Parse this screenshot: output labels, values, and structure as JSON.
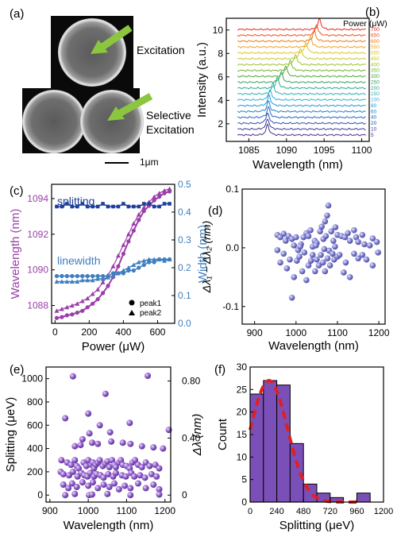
{
  "colors": {
    "purple": "#9b3fa8",
    "navy": "#1f3f9a",
    "lightblue": "#3f7fc0",
    "violet": "#7a52c0",
    "sphere": "#8a8ad6",
    "fit": "#e02020",
    "bar": "#7b4fb8"
  },
  "panel_a": {
    "label": "(a)",
    "excitation": "Excitation",
    "selective1": "Selective",
    "selective2": "Excitation",
    "scale": "1μm"
  },
  "chart_data": [
    {
      "panel": "(b)",
      "type": "line",
      "xlabel": "Wavelength (nm)",
      "ylabel": "Intensity (a.u.)",
      "xlim": [
        1082,
        1101
      ],
      "ylim": [
        0.5,
        11
      ],
      "xticks": [
        1085,
        1090,
        1095,
        1100
      ],
      "yticks": [
        2,
        4,
        6,
        8,
        10
      ],
      "legend_title": "Power (μW)",
      "series_names": [
        "5",
        "10",
        "20",
        "40",
        "60",
        "80",
        "100",
        "150",
        "200",
        "250",
        "300",
        "350",
        "400",
        "450",
        "500",
        "550",
        "600",
        "650",
        "700"
      ],
      "peak_wavelengths": [
        1087.5,
        1087.5,
        1087.5,
        1087.6,
        1087.6,
        1087.7,
        1087.8,
        1088.2,
        1088.8,
        1089.3,
        1089.9,
        1090.5,
        1091.2,
        1091.9,
        1092.6,
        1093.2,
        1093.7,
        1094.0,
        1094.4
      ],
      "grid": false
    },
    {
      "panel": "(c)",
      "type": "line",
      "xlabel": "Power (μW)",
      "ylabel_left": "Wavelength (nm)",
      "ylabel_right": "Width (nm)",
      "xlim": [
        -20,
        700
      ],
      "ylim_left": [
        1087,
        1094.8
      ],
      "ylim_right": [
        0,
        0.5
      ],
      "xticks": [
        0,
        200,
        400,
        600
      ],
      "yticks_left": [
        1088,
        1090,
        1092,
        1094
      ],
      "yticks_right": [
        0.0,
        0.1,
        0.2,
        0.3,
        0.4,
        0.5
      ],
      "annotations": [
        "splitting",
        "linewidth"
      ],
      "legend": [
        "peak1",
        "peak2"
      ],
      "x": [
        10,
        40,
        70,
        100,
        130,
        160,
        190,
        220,
        250,
        280,
        310,
        340,
        370,
        400,
        430,
        460,
        490,
        520,
        550,
        580,
        610,
        640,
        670
      ],
      "series": [
        {
          "name": "peak1",
          "axis": "left",
          "values": [
            1087.3,
            1087.35,
            1087.45,
            1087.5,
            1087.6,
            1087.7,
            1087.9,
            1088.1,
            1088.35,
            1088.7,
            1089.1,
            1089.6,
            1090.2,
            1090.9,
            1091.6,
            1092.2,
            1092.8,
            1093.3,
            1093.6,
            1093.9,
            1094.1,
            1094.3,
            1094.4
          ]
        },
        {
          "name": "peak2",
          "axis": "left",
          "values": [
            1087.7,
            1087.8,
            1087.9,
            1088.0,
            1088.1,
            1088.25,
            1088.4,
            1088.65,
            1088.9,
            1089.3,
            1089.7,
            1090.2,
            1090.8,
            1091.4,
            1092.0,
            1092.6,
            1093.1,
            1093.5,
            1093.8,
            1094.1,
            1094.3,
            1094.45,
            1094.55
          ]
        },
        {
          "name": "splitting",
          "axis": "right",
          "values": [
            0.42,
            0.42,
            0.43,
            0.42,
            0.42,
            0.43,
            0.42,
            0.42,
            0.42,
            0.43,
            0.42,
            0.42,
            0.42,
            0.43,
            0.42,
            0.42,
            0.42,
            0.43,
            0.43,
            0.42,
            0.42,
            0.43,
            0.43
          ]
        },
        {
          "name": "linewidth peak1",
          "axis": "right",
          "values": [
            0.17,
            0.17,
            0.17,
            0.17,
            0.17,
            0.17,
            0.17,
            0.17,
            0.17,
            0.17,
            0.17,
            0.18,
            0.18,
            0.18,
            0.19,
            0.19,
            0.2,
            0.21,
            0.22,
            0.22,
            0.23,
            0.23,
            0.23
          ]
        },
        {
          "name": "linewidth peak2",
          "axis": "right",
          "values": [
            0.15,
            0.15,
            0.15,
            0.15,
            0.15,
            0.155,
            0.155,
            0.155,
            0.16,
            0.16,
            0.165,
            0.17,
            0.18,
            0.19,
            0.2,
            0.21,
            0.22,
            0.225,
            0.23,
            0.23,
            0.23,
            0.225,
            0.23
          ]
        }
      ]
    },
    {
      "panel": "(d)",
      "type": "scatter",
      "xlabel": "Wavelength (nm)",
      "ylabel": "Δλ₁ − Δλ₂ (nm)",
      "xlim": [
        870,
        1215
      ],
      "ylim": [
        -0.13,
        0.1
      ],
      "xticks": [
        900,
        1000,
        1100,
        1200
      ],
      "yticks": [
        -0.1,
        0.0,
        0.1
      ],
      "points": [
        [
          955,
          0.022
        ],
        [
          962,
          0.018
        ],
        [
          970,
          0.024
        ],
        [
          975,
          0.012
        ],
        [
          982,
          0.02
        ],
        [
          990,
          0.015
        ],
        [
          995,
          0.004
        ],
        [
          1000,
          0.018
        ],
        [
          1005,
          -0.004
        ],
        [
          1012,
          0.006
        ],
        [
          1018,
          0.018
        ],
        [
          1025,
          0.025
        ],
        [
          1030,
          0.02
        ],
        [
          1035,
          0.03
        ],
        [
          1040,
          0.002
        ],
        [
          1045,
          0.012
        ],
        [
          1050,
          0.008
        ],
        [
          1058,
          0.028
        ],
        [
          1062,
          0.036
        ],
        [
          1066,
          0.015
        ],
        [
          1070,
          0.045
        ],
        [
          1072,
          0.02
        ],
        [
          1075,
          0.055
        ],
        [
          1078,
          0.072
        ],
        [
          1080,
          -0.005
        ],
        [
          1085,
          0.028
        ],
        [
          1090,
          0.012
        ],
        [
          1095,
          0.035
        ],
        [
          1100,
          0.022
        ],
        [
          1110,
          0.02
        ],
        [
          1118,
          0.018
        ],
        [
          1125,
          0.025
        ],
        [
          1130,
          0.012
        ],
        [
          1140,
          0.03
        ],
        [
          1145,
          0.018
        ],
        [
          1150,
          0.01
        ],
        [
          1160,
          0.022
        ],
        [
          1165,
          0.006
        ],
        [
          1178,
          0.004
        ],
        [
          1185,
          0.016
        ],
        [
          1195,
          0.01
        ],
        [
          955,
          -0.004
        ],
        [
          962,
          -0.025
        ],
        [
          970,
          -0.01
        ],
        [
          978,
          -0.035
        ],
        [
          985,
          -0.02
        ],
        [
          990,
          -0.085
        ],
        [
          995,
          -0.05
        ],
        [
          1002,
          -0.022
        ],
        [
          1008,
          -0.015
        ],
        [
          1015,
          -0.04
        ],
        [
          1020,
          -0.008
        ],
        [
          1025,
          -0.055
        ],
        [
          1030,
          -0.03
        ],
        [
          1036,
          -0.022
        ],
        [
          1040,
          -0.012
        ],
        [
          1046,
          -0.04
        ],
        [
          1050,
          -0.02
        ],
        [
          1055,
          -0.03
        ],
        [
          1060,
          -0.012
        ],
        [
          1065,
          -0.025
        ],
        [
          1070,
          -0.04
        ],
        [
          1076,
          -0.018
        ],
        [
          1082,
          -0.03
        ],
        [
          1088,
          -0.01
        ],
        [
          1092,
          -0.02
        ],
        [
          1100,
          -0.015
        ],
        [
          1105,
          -0.012
        ],
        [
          1115,
          -0.042
        ],
        [
          1120,
          -0.025
        ],
        [
          1130,
          -0.05
        ],
        [
          1140,
          -0.01
        ],
        [
          1150,
          -0.018
        ],
        [
          1160,
          -0.012
        ],
        [
          1170,
          -0.02
        ],
        [
          1185,
          -0.03
        ],
        [
          1198,
          -0.008
        ],
        [
          1010,
          0.002
        ],
        [
          1048,
          0.004
        ],
        [
          1068,
          -0.002
        ],
        [
          1094,
          0.002
        ]
      ]
    },
    {
      "panel": "(e)",
      "type": "scatter",
      "xlabel": "Wavelength (nm)",
      "ylabel_left": "Splitting (μeV)",
      "ylabel_right": "Δλ (nm)",
      "xlim": [
        890,
        1215
      ],
      "ylim": [
        -60,
        1100
      ],
      "xticks": [
        900,
        1000,
        1100,
        1200
      ],
      "yticks_left": [
        0,
        200,
        400,
        600,
        800,
        1000
      ],
      "yticks_right_labels": [
        "0",
        "0.40",
        "0.80"
      ],
      "points": [
        [
          960,
          1020
        ],
        [
          1155,
          1025
        ],
        [
          1045,
          870
        ],
        [
          1210,
          560
        ],
        [
          940,
          660
        ],
        [
          1000,
          700
        ],
        [
          1108,
          620
        ],
        [
          1030,
          600
        ],
        [
          1057,
          540
        ],
        [
          1003,
          530
        ],
        [
          985,
          480
        ],
        [
          965,
          420
        ],
        [
          980,
          430
        ],
        [
          1010,
          450
        ],
        [
          1025,
          440
        ],
        [
          1060,
          460
        ],
        [
          1090,
          450
        ],
        [
          1110,
          440
        ],
        [
          1140,
          420
        ],
        [
          1170,
          410
        ],
        [
          1195,
          400
        ],
        [
          930,
          300
        ],
        [
          945,
          280
        ],
        [
          955,
          260
        ],
        [
          965,
          300
        ],
        [
          970,
          250
        ],
        [
          975,
          230
        ],
        [
          988,
          280
        ],
        [
          995,
          250
        ],
        [
          1000,
          300
        ],
        [
          1008,
          260
        ],
        [
          1012,
          280
        ],
        [
          1015,
          230
        ],
        [
          1020,
          260
        ],
        [
          1025,
          280
        ],
        [
          1030,
          300
        ],
        [
          1038,
          250
        ],
        [
          1045,
          270
        ],
        [
          1050,
          290
        ],
        [
          1055,
          240
        ],
        [
          1062,
          300
        ],
        [
          1068,
          260
        ],
        [
          1072,
          240
        ],
        [
          1080,
          280
        ],
        [
          1085,
          300
        ],
        [
          1090,
          260
        ],
        [
          1100,
          250
        ],
        [
          1108,
          230
        ],
        [
          1115,
          280
        ],
        [
          1122,
          300
        ],
        [
          1130,
          260
        ],
        [
          1140,
          240
        ],
        [
          1150,
          280
        ],
        [
          1160,
          250
        ],
        [
          1175,
          260
        ],
        [
          1185,
          230
        ],
        [
          928,
          200
        ],
        [
          935,
          180
        ],
        [
          950,
          170
        ],
        [
          960,
          200
        ],
        [
          972,
          160
        ],
        [
          982,
          190
        ],
        [
          990,
          170
        ],
        [
          998,
          160
        ],
        [
          1005,
          190
        ],
        [
          1015,
          160
        ],
        [
          1022,
          180
        ],
        [
          1032,
          170
        ],
        [
          1040,
          150
        ],
        [
          1052,
          180
        ],
        [
          1065,
          160
        ],
        [
          1072,
          190
        ],
        [
          1088,
          170
        ],
        [
          1098,
          160
        ],
        [
          1112,
          190
        ],
        [
          1120,
          160
        ],
        [
          1135,
          170
        ],
        [
          1148,
          150
        ],
        [
          1165,
          180
        ],
        [
          1178,
          160
        ],
        [
          935,
          90
        ],
        [
          948,
          60
        ],
        [
          958,
          100
        ],
        [
          970,
          70
        ],
        [
          985,
          110
        ],
        [
          1000,
          80
        ],
        [
          1012,
          110
        ],
        [
          1025,
          60
        ],
        [
          1040,
          90
        ],
        [
          1055,
          70
        ],
        [
          1068,
          100
        ],
        [
          1080,
          50
        ],
        [
          1095,
          80
        ],
        [
          1110,
          60
        ],
        [
          1130,
          100
        ],
        [
          1150,
          60
        ],
        [
          1170,
          90
        ],
        [
          1185,
          50
        ],
        [
          940,
          0
        ],
        [
          965,
          10
        ],
        [
          1002,
          0
        ],
        [
          1010,
          5
        ],
        [
          1050,
          10
        ],
        [
          1110,
          0
        ],
        [
          1185,
          5
        ]
      ]
    },
    {
      "panel": "(f)",
      "type": "bar",
      "xlabel": "Splitting (μeV)",
      "ylabel": "Count",
      "xlim": [
        0,
        1200
      ],
      "ylim": [
        0,
        30
      ],
      "xticks": [
        0,
        240,
        480,
        720,
        960,
        1200
      ],
      "yticks": [
        0,
        5,
        10,
        15,
        20,
        25,
        30
      ],
      "bin_width": 120,
      "bin_starts": [
        0,
        120,
        240,
        360,
        480,
        600,
        720,
        840,
        960,
        1080
      ],
      "values": [
        24,
        27,
        26,
        13,
        4,
        2,
        1,
        0,
        2,
        0
      ],
      "fit_curve": {
        "type": "gaussian",
        "amplitude": 27,
        "center": 170,
        "sigma": 235
      }
    }
  ]
}
